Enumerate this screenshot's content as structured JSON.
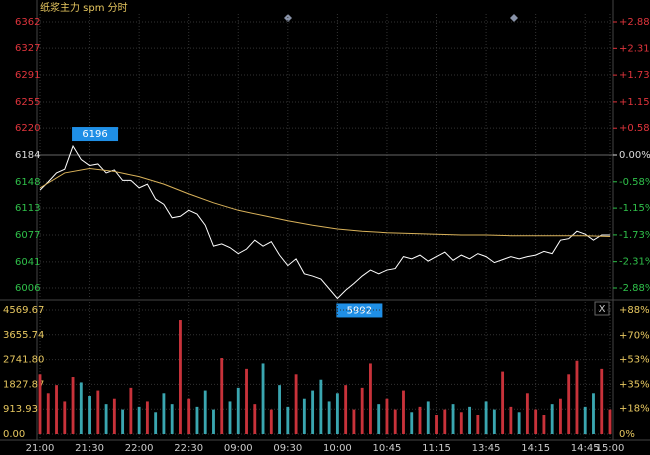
{
  "chart_data": [
    {
      "type": "line",
      "title": "纸浆主力 spm 分时",
      "xlim": [
        0,
        345
      ],
      "xticks": [
        {
          "value": 0,
          "label": "21:00"
        },
        {
          "value": 30,
          "label": "21:30"
        },
        {
          "value": 60,
          "label": "22:00"
        },
        {
          "value": 90,
          "label": "22:30"
        },
        {
          "value": 120,
          "label": "09:00"
        },
        {
          "value": 150,
          "label": "09:30"
        },
        {
          "value": 180,
          "label": "10:00"
        },
        {
          "value": 210,
          "label": "10:45"
        },
        {
          "value": 240,
          "label": "11:15"
        },
        {
          "value": 270,
          "label": "13:45"
        },
        {
          "value": 300,
          "label": "14:15"
        },
        {
          "value": 330,
          "label": "14:45"
        },
        {
          "value": 345,
          "label": "15:00"
        }
      ],
      "ylim": [
        6006,
        6362
      ],
      "yticks": [
        6362,
        6327,
        6291,
        6255,
        6220,
        6184,
        6148,
        6113,
        6077,
        6041,
        6006
      ],
      "y2lim": [
        -2.88,
        2.88
      ],
      "y2ticks": [
        {
          "value": 2.88,
          "label": "+2.88%"
        },
        {
          "value": 2.31,
          "label": "+2.31%"
        },
        {
          "value": 1.73,
          "label": "+1.73%"
        },
        {
          "value": 1.15,
          "label": "+1.15%"
        },
        {
          "value": 0.58,
          "label": "+0.58%"
        },
        {
          "value": 0,
          "label": "0.00%"
        },
        {
          "value": -0.58,
          "label": "-0.58%"
        },
        {
          "value": -1.15,
          "label": "-1.15%"
        },
        {
          "value": -1.73,
          "label": "-1.73%"
        },
        {
          "value": -2.31,
          "label": "-2.31%"
        },
        {
          "value": -2.88,
          "label": "-2.88%"
        }
      ],
      "grid": true,
      "up_color": "#e0343c",
      "down_color": "#2fc04a",
      "series": [
        {
          "color": "#ffffff",
          "x": [
            0,
            5,
            10,
            15,
            20,
            25,
            30,
            35,
            40,
            45,
            50,
            55,
            60,
            65,
            70,
            75,
            80,
            85,
            90,
            95,
            100,
            105,
            110,
            115,
            120,
            125,
            130,
            135,
            140,
            145,
            150,
            155,
            160,
            165,
            170,
            175,
            180,
            185,
            190,
            195,
            200,
            205,
            210,
            215,
            220,
            225,
            230,
            235,
            240,
            245,
            250,
            255,
            260,
            265,
            270,
            275,
            280,
            285,
            290,
            295,
            300,
            305,
            310,
            315,
            320,
            325,
            330,
            335,
            340,
            345
          ],
          "values": [
            6137,
            6148,
            6160,
            6165,
            6196,
            6178,
            6170,
            6172,
            6160,
            6164,
            6150,
            6150,
            6140,
            6145,
            6125,
            6118,
            6100,
            6102,
            6110,
            6105,
            6090,
            6062,
            6065,
            6060,
            6052,
            6058,
            6070,
            6062,
            6068,
            6050,
            6036,
            6045,
            6025,
            6022,
            6018,
            6005,
            5992,
            6003,
            6012,
            6022,
            6030,
            6025,
            6030,
            6032,
            6048,
            6045,
            6050,
            6042,
            6048,
            6054,
            6043,
            6050,
            6045,
            6052,
            6048,
            6040,
            6044,
            6048,
            6045,
            6048,
            6050,
            6055,
            6052,
            6070,
            6072,
            6082,
            6078,
            6070,
            6077,
            6077
          ]
        },
        {
          "color": "#d9b25a",
          "x": [
            0,
            15,
            30,
            45,
            60,
            75,
            90,
            105,
            120,
            135,
            150,
            165,
            180,
            195,
            210,
            225,
            240,
            255,
            270,
            285,
            300,
            315,
            330,
            345
          ],
          "values": [
            6140,
            6160,
            6166,
            6162,
            6155,
            6145,
            6132,
            6120,
            6110,
            6103,
            6096,
            6090,
            6085,
            6082,
            6080,
            6079,
            6078,
            6077,
            6077,
            6076,
            6076,
            6076,
            6076,
            6075
          ]
        }
      ],
      "high_label": "6196",
      "low_label": "5992"
    },
    {
      "type": "bar",
      "xlim": [
        0,
        345
      ],
      "x": [
        0,
        5,
        10,
        15,
        20,
        25,
        30,
        35,
        40,
        45,
        50,
        55,
        60,
        65,
        70,
        75,
        80,
        85,
        90,
        95,
        100,
        105,
        110,
        115,
        120,
        125,
        130,
        135,
        140,
        145,
        150,
        155,
        160,
        165,
        170,
        175,
        180,
        185,
        190,
        195,
        200,
        205,
        210,
        215,
        220,
        225,
        230,
        235,
        240,
        245,
        250,
        255,
        260,
        265,
        270,
        275,
        280,
        285,
        290,
        295,
        300,
        305,
        310,
        315,
        320,
        325,
        330,
        335,
        340,
        345
      ],
      "values": [
        2200,
        1500,
        1800,
        1200,
        2100,
        1900,
        1400,
        1600,
        1100,
        1300,
        900,
        1700,
        1000,
        1200,
        800,
        1500,
        1100,
        4200,
        1300,
        1000,
        1600,
        900,
        2800,
        1200,
        1700,
        2400,
        1100,
        2600,
        900,
        1800,
        1000,
        2200,
        1300,
        1600,
        2000,
        1200,
        1500,
        1800,
        900,
        1700,
        2600,
        1100,
        1300,
        900,
        1600,
        800,
        1000,
        1200,
        700,
        900,
        1100,
        800,
        1000,
        700,
        1200,
        900,
        2300,
        1000,
        800,
        1500,
        900,
        700,
        1100,
        1300,
        2200,
        2700,
        1000,
        1500,
        2400,
        900
      ],
      "ylim": [
        0,
        4569.67
      ],
      "yticks": [
        4569.67,
        3655.74,
        {
          "value": 2741.8,
          "label": "2741.80"
        },
        1827.87,
        913.93,
        {
          "value": 0,
          "label": "0.00"
        }
      ],
      "y2lim": [
        0,
        88
      ],
      "y2ticks": [
        {
          "value": 88,
          "label": "+88%"
        },
        {
          "value": 70,
          "label": "+70%"
        },
        {
          "value": 53,
          "label": "+53%"
        },
        {
          "value": 35,
          "label": "+35%"
        },
        {
          "value": 18,
          "label": "+18%"
        },
        {
          "value": 0,
          "label": "0%"
        }
      ],
      "up_color": "#c8323a",
      "down_color": "#3aa6b0",
      "close_label": "X"
    }
  ]
}
